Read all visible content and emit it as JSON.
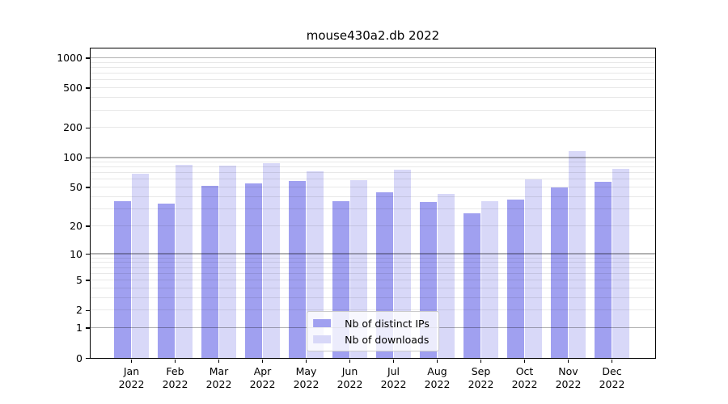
{
  "chart_data": {
    "type": "bar",
    "title": "mouse430a2.db 2022",
    "xlabel": "",
    "ylabel": "",
    "year": "2022",
    "categories": [
      "Jan",
      "Feb",
      "Mar",
      "Apr",
      "May",
      "Jun",
      "Jul",
      "Aug",
      "Sep",
      "Oct",
      "Nov",
      "Dec"
    ],
    "series": [
      {
        "name": "Nb of distinct IPs",
        "color": "#a0a0f0",
        "values": [
          36,
          34,
          52,
          55,
          58,
          36,
          44,
          35,
          27,
          37,
          50,
          57
        ]
      },
      {
        "name": "Nb of downloads",
        "color": "#d8d8f8",
        "values": [
          68,
          85,
          82,
          88,
          73,
          59,
          75,
          43,
          36,
          60,
          116,
          77
        ]
      }
    ],
    "y_scale": "log10(1+y)",
    "ylim": [
      0,
      1236
    ],
    "y_ticks": [
      0,
      1,
      2,
      5,
      10,
      20,
      50,
      100,
      200,
      500,
      1000
    ],
    "y_major_gridlines": [
      1,
      10,
      100,
      1000
    ],
    "grid": true,
    "legend_position": "lower center"
  },
  "colors": {
    "background": "#ffffff",
    "axis": "#000000",
    "grid_major": "rgba(0,0,0,0.30)",
    "grid_minor": "rgba(0,0,0,0.09)",
    "legend_border": "#cccccc"
  }
}
